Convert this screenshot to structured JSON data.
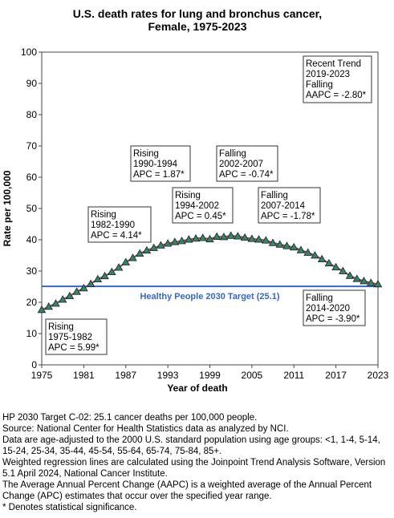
{
  "chart_data": {
    "type": "scatter",
    "title_line1": "U.S. death rates for lung and bronchus cancer,",
    "title_line2": "Female,  1975-2023",
    "xlabel": "Year of death",
    "ylabel": "Rate per 100,000",
    "xlim": [
      1975,
      2023
    ],
    "ylim": [
      0,
      100
    ],
    "x_ticks": [
      "1975",
      "1981",
      "1987",
      "1993",
      "1999",
      "2005",
      "2011",
      "2017",
      "2023"
    ],
    "y_ticks": [
      "0",
      "10",
      "20",
      "30",
      "40",
      "50",
      "60",
      "70",
      "80",
      "90",
      "100"
    ],
    "grid": false,
    "colors": {
      "markers": "#2e8b57",
      "trend": "#cc3333",
      "target": "#3366dd",
      "target_text": "#3366cc"
    },
    "series": [
      {
        "x": [
          1975,
          1976,
          1977,
          1978,
          1979,
          1980,
          1981,
          1982,
          1983,
          1984,
          1985,
          1986,
          1987,
          1988,
          1989,
          1990,
          1991,
          1992,
          1993,
          1994,
          1995,
          1996,
          1997,
          1998,
          1999,
          2000,
          2001,
          2002,
          2003,
          2004,
          2005,
          2006,
          2007,
          2008,
          2009,
          2010,
          2011,
          2012,
          2013,
          2014,
          2015,
          2016,
          2017,
          2018,
          2019,
          2020,
          2021,
          2022,
          2023
        ],
        "y": [
          17.6,
          18.6,
          19.6,
          20.9,
          22.0,
          23.4,
          24.5,
          25.9,
          27.4,
          28.4,
          29.7,
          31.1,
          32.8,
          34.2,
          35.6,
          36.6,
          37.4,
          38.2,
          38.8,
          39.3,
          39.6,
          40.1,
          40.4,
          40.6,
          40.2,
          41.0,
          40.9,
          41.3,
          41.1,
          40.7,
          40.3,
          40.1,
          39.8,
          39.0,
          38.5,
          38.0,
          37.6,
          36.7,
          35.9,
          35.0,
          33.8,
          32.5,
          31.2,
          30.0,
          28.5,
          27.5,
          26.8,
          26.2,
          25.8
        ]
      }
    ],
    "target": {
      "value": 25.1,
      "label": "Healthy People 2030 Target (25.1)"
    },
    "annotations": [
      {
        "lines": [
          "Rising",
          "1975-1982",
          "APC =  5.99*"
        ]
      },
      {
        "lines": [
          "Rising",
          "1982-1990",
          "APC =  4.14*"
        ]
      },
      {
        "lines": [
          "Rising",
          "1990-1994",
          "APC =  1.87*"
        ]
      },
      {
        "lines": [
          "Rising",
          "1994-2002",
          "APC =  0.45*"
        ]
      },
      {
        "lines": [
          "Falling",
          "2002-2007",
          "APC = -0.74*"
        ]
      },
      {
        "lines": [
          "Falling",
          "2007-2014",
          "APC = -1.78*"
        ]
      },
      {
        "lines": [
          "Falling",
          "2014-2020",
          "APC = -3.90*"
        ]
      },
      {
        "lines": [
          "Recent Trend",
          "2019-2023",
          "Falling",
          "AAPC = -2.80*"
        ]
      }
    ]
  },
  "footnotes": [
    "HP 2030 Target C-02: 25.1 cancer deaths per 100,000 people.",
    "Source: National Center for Health Statistics data as analyzed by NCI.",
    "Data are age-adjusted to the 2000 U.S. standard population using age groups: <1, 1-4, 5-14, 15-24, 25-34, 35-44, 45-54, 55-64, 65-74, 75-84, 85+.",
    "Weighted regression lines are calculated using the Joinpoint Trend Analysis Software, Version 5.1 April 2024, National Cancer Institute.",
    "The Average Annual Percent Change (AAPC) is a weighted average of the Annual Percent Change (APC) estimates that occur over the specified year range.",
    "* Denotes statistical significance."
  ]
}
